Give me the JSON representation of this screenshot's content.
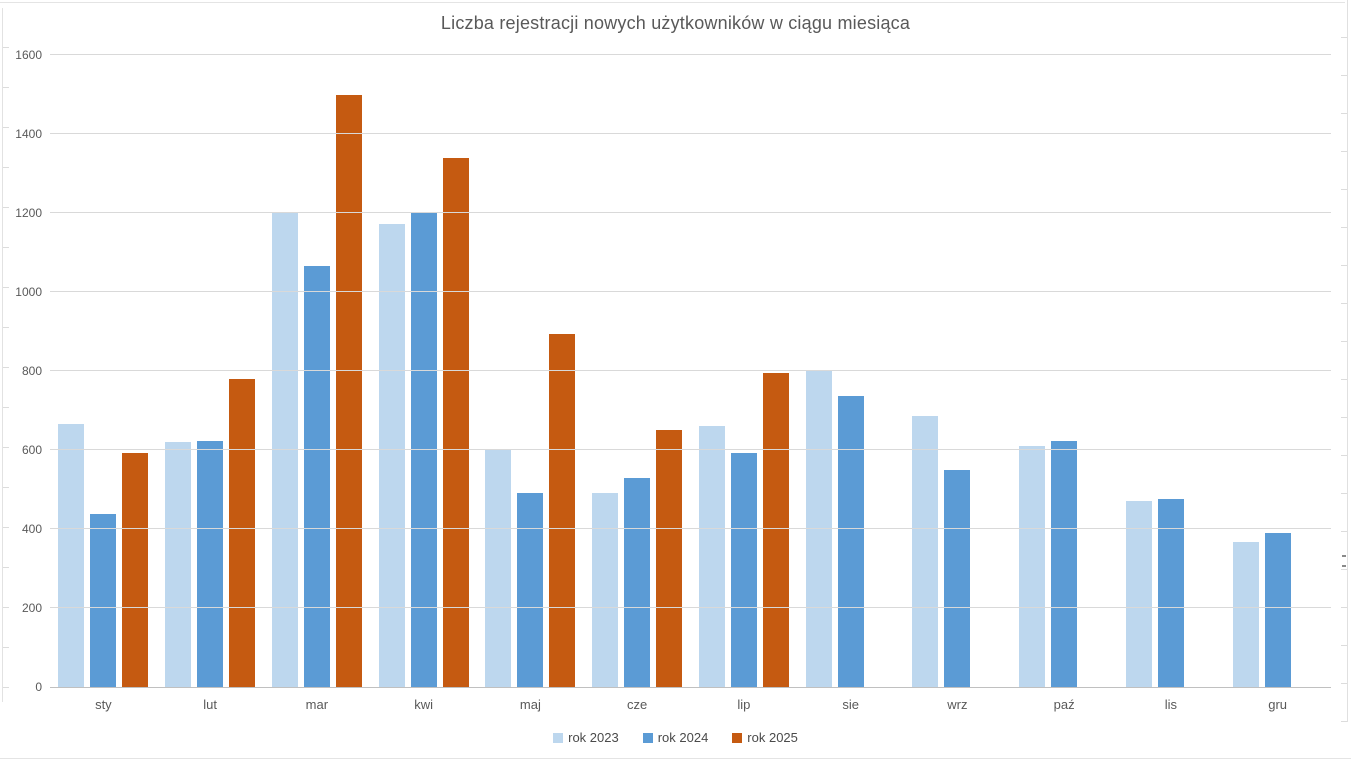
{
  "chart_data": {
    "type": "bar",
    "title": "Liczba rejestracji nowych użytkowników w ciągu miesiąca",
    "xlabel": "",
    "ylabel": "",
    "categories": [
      "sty",
      "lut",
      "mar",
      "kwi",
      "maj",
      "cze",
      "lip",
      "sie",
      "wrz",
      "paź",
      "lis",
      "gru"
    ],
    "series": [
      {
        "name": "rok 2023",
        "color": "#BDD7EE",
        "values": [
          667,
          620,
          1203,
          1172,
          602,
          491,
          661,
          801,
          685,
          611,
          470,
          367
        ]
      },
      {
        "name": "rok 2024",
        "color": "#5B9BD5",
        "values": [
          439,
          623,
          1065,
          1200,
          492,
          530,
          592,
          737,
          549,
          622,
          476,
          390
        ]
      },
      {
        "name": "rok 2025",
        "color": "#C55A11",
        "values": [
          593,
          780,
          1500,
          1340,
          893,
          650,
          795,
          null,
          null,
          null,
          null,
          null
        ]
      }
    ],
    "ylim": [
      0,
      1600
    ],
    "yticks": [
      0,
      200,
      400,
      600,
      800,
      1000,
      1200,
      1400,
      1600
    ],
    "grid": true,
    "legend_position": "bottom"
  },
  "colors": {
    "title_text": "#595959",
    "axis_text": "#595959",
    "gridline": "#D9D9D9",
    "axis_line": "#C0C0C0"
  }
}
